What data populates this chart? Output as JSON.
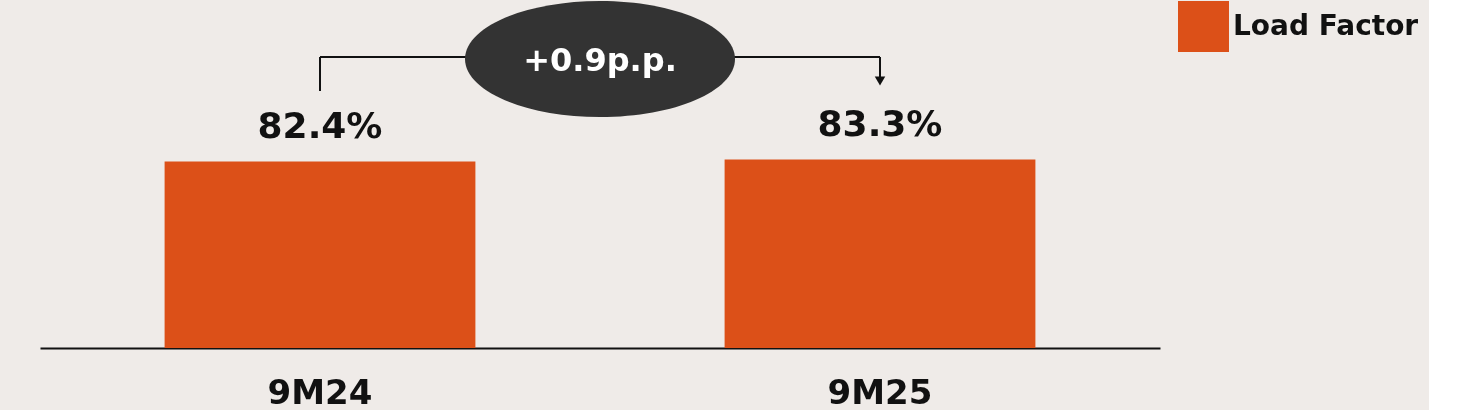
{
  "chart_data": {
    "type": "bar",
    "categories": [
      "9M24",
      "9M25"
    ],
    "series": [
      {
        "name": "Load Factor",
        "color": "#dc5018",
        "values": [
          82.4,
          83.3
        ],
        "value_labels": [
          "82.4%",
          "83.3%"
        ]
      }
    ],
    "annotations": [
      "+0.9p.p."
    ],
    "legend": "right"
  }
}
